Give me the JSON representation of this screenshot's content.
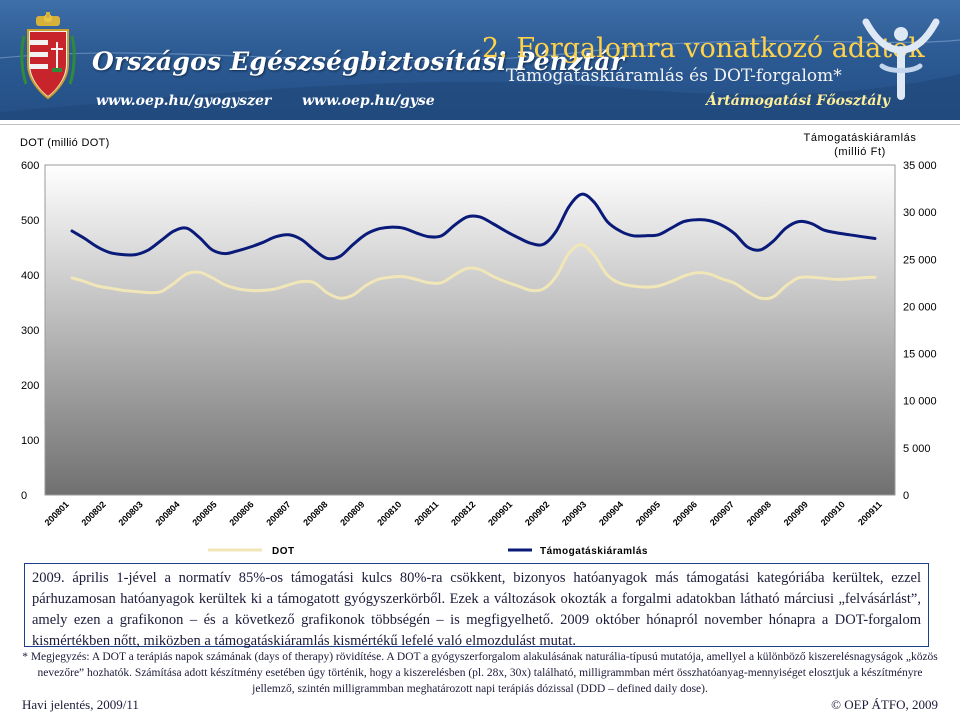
{
  "header": {
    "org_title": "Országos Egészségbiztosítási Pénztár",
    "url1": "www.oep.hu/gyogyszer",
    "url2": "www.oep.hu/gyse",
    "ministry": "Ártámogatási Főosztály",
    "slide_title": "2. Forgalomra vonatkozó adatok",
    "slide_subtitle": "Támogatáskiáramlás és DOT-forgalom*"
  },
  "chart_data": {
    "type": "line",
    "x_labels": [
      "200801",
      "200802",
      "200803",
      "200804",
      "200805",
      "200806",
      "200807",
      "200808",
      "200809",
      "200810",
      "200811",
      "200812",
      "200901",
      "200902",
      "200903",
      "200904",
      "200905",
      "200906",
      "200907",
      "200908",
      "200909",
      "200910",
      "200911"
    ],
    "left_axis": {
      "title": "DOT (millió DOT)",
      "ylim": [
        0,
        600
      ],
      "ticks": [
        "0",
        "100",
        "200",
        "300",
        "400",
        "500",
        "600"
      ]
    },
    "right_axis": {
      "title_line1": "Támogatáskiáramlás",
      "title_line2": "(millió Ft)",
      "ylim": [
        0,
        35000
      ],
      "ticks": [
        "0",
        "5 000",
        "10 000",
        "15 000",
        "20 000",
        "25 000",
        "30 000",
        "35 000"
      ]
    },
    "series": [
      {
        "name": "DOT",
        "axis": "left",
        "color": "#f0e6b8",
        "values": [
          395,
          388,
          380,
          376,
          372,
          370,
          368,
          370,
          385,
          402,
          405,
          395,
          382,
          375,
          372,
          372,
          375,
          382,
          388,
          386,
          368,
          358,
          363,
          380,
          392,
          396,
          397,
          392,
          386,
          386,
          400,
          412,
          410,
          398,
          388,
          380,
          372,
          375,
          398,
          440,
          455,
          435,
          400,
          385,
          380,
          378,
          380,
          388,
          398,
          404,
          402,
          393,
          385,
          370,
          358,
          360,
          380,
          395,
          396,
          394,
          392,
          393,
          395,
          396
        ]
      },
      {
        "name": "Támogatáskiáramlás",
        "axis": "right",
        "color": "#0a1a78",
        "values": [
          28000,
          27200,
          26300,
          25700,
          25500,
          25500,
          26000,
          27000,
          28000,
          28300,
          27300,
          26000,
          25600,
          25900,
          26300,
          26800,
          27400,
          27600,
          27100,
          26000,
          25100,
          25300,
          26500,
          27600,
          28200,
          28400,
          28300,
          27800,
          27400,
          27500,
          28600,
          29500,
          29500,
          28800,
          28000,
          27300,
          26700,
          26600,
          28000,
          30600,
          31900,
          31000,
          29000,
          28000,
          27500,
          27500,
          27600,
          28300,
          29000,
          29200,
          29100,
          28600,
          27700,
          26300,
          26000,
          26900,
          28300,
          29000,
          28800,
          28100,
          27800,
          27600,
          27400,
          27200
        ]
      }
    ],
    "legend": [
      "DOT",
      "Támogatáskiáramlás"
    ]
  },
  "body": {
    "paragraph": "2009. április 1-jével a normatív 85%-os támogatási kulcs 80%-ra csökkent, bizonyos hatóanyagok más támogatási kategóriába kerültek, ezzel párhuzamosan hatóanyagok kerültek ki a támogatott gyógyszerkörből. Ezek a változások okozták a forgalmi adatokban látható márciusi „felvásárlást”, amely ezen a grafikonon – és a következő grafikonok többségén – is megfigyelhető. 2009 október hónapról november hónapra a DOT-forgalom kismértékben nőtt, miközben a támogatáskiáramlás kismértékű lefelé való elmozdulást mutat.",
    "note": "* Megjegyzés: A DOT a terápiás napok számának (days of therapy) rövidítése. A DOT a gyógyszerforgalom alakulásának naturália-típusú mutatója, amellyel a különböző kiszerelésnagyságok „közös nevezőre” hozhatók. Számítása adott készítmény esetében úgy történik, hogy a kiszerelésben (pl. 28x, 30x) található, milligrammban mért összhatóanyag-mennyiséget elosztjuk a készítményre jellemző, szintén milligrammban meghatározott napi terápiás dózissal (DDD – defined daily dose)."
  },
  "footer": {
    "left": "Havi jelentés, 2009/11",
    "right": "© OEP ÁTFO, 2009"
  },
  "colors": {
    "banner": "#2c5a93",
    "dot_line": "#f0e6b8",
    "support_line": "#0a1a78",
    "plot_bg_top": "#ffffff",
    "plot_bg_bottom": "#707070"
  }
}
